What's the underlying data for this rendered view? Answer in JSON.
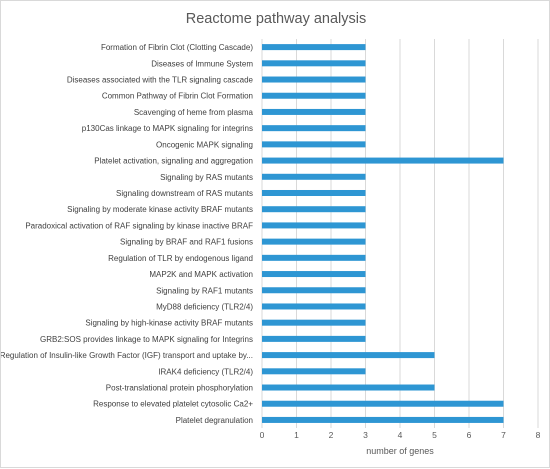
{
  "chart_data": {
    "type": "bar",
    "orientation": "horizontal",
    "title": "Reactome pathway analysis",
    "xlabel": "number of genes",
    "ylabel": "",
    "xlim": [
      0,
      8
    ],
    "xticks": [
      "0",
      "1",
      "2",
      "3",
      "4",
      "5",
      "6",
      "7",
      "8"
    ],
    "grid": "vertical",
    "legend": "none",
    "bar_color": "#2e96d3",
    "gridline_color": "#d9d9d9",
    "categories": [
      "Formation of Fibrin Clot (Clotting Cascade)",
      "Diseases of Immune System",
      "Diseases associated with the TLR signaling cascade",
      "Common Pathway of Fibrin Clot Formation",
      "Scavenging of heme from plasma",
      "p130Cas linkage to MAPK signaling for integrins",
      "Oncogenic MAPK signaling",
      "Platelet activation, signaling and aggregation",
      "Signaling by RAS mutants",
      "Signaling downstream of RAS mutants",
      "Signaling by moderate kinase activity BRAF mutants",
      "Paradoxical activation of RAF signaling by kinase inactive BRAF",
      "Signaling by BRAF and RAF1 fusions",
      "Regulation of TLR by endogenous ligand",
      "MAP2K and MAPK activation",
      "Signaling by RAF1 mutants",
      "MyD88 deficiency (TLR2/4)",
      "Signaling by high-kinase activity BRAF mutants",
      "GRB2:SOS provides linkage to MAPK signaling for Integrins",
      "Regulation of Insulin-like Growth Factor (IGF) transport and uptake by...",
      "IRAK4 deficiency (TLR2/4)",
      "Post-translational protein phosphorylation",
      "Response to elevated platelet cytosolic Ca2+",
      "Platelet degranulation"
    ],
    "values": [
      3,
      3,
      3,
      3,
      3,
      3,
      3,
      7,
      3,
      3,
      3,
      3,
      3,
      3,
      3,
      3,
      3,
      3,
      3,
      5,
      3,
      5,
      7,
      7
    ]
  }
}
